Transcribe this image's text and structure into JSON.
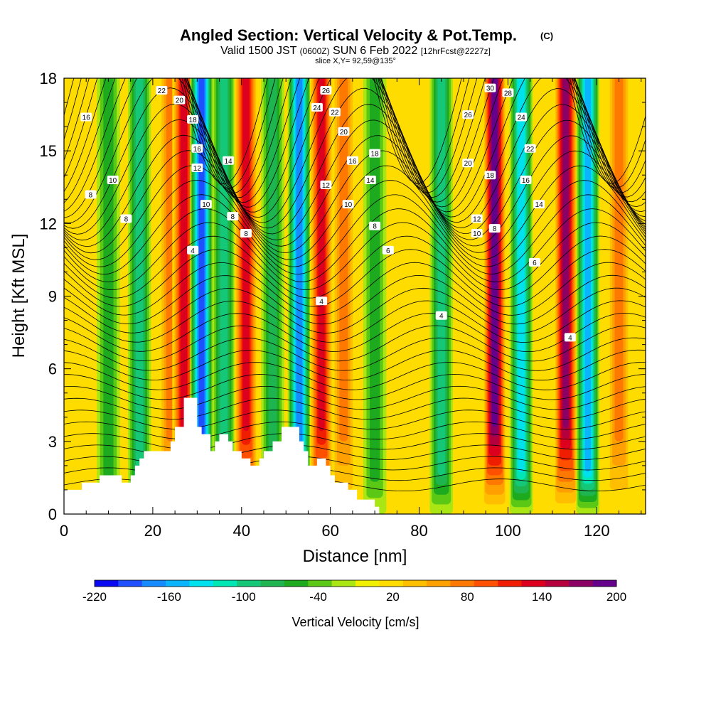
{
  "title": {
    "main": "Angled Section: Vertical Velocity & Pot.Temp.",
    "main_suffix": "(C)",
    "valid_prefix": "Valid 1500 JST",
    "valid_zulu": "(0600Z)",
    "valid_date": "SUN 6 Feb 2022",
    "forecast": "[12hrFcst@2227z]",
    "slice": "slice X,Y= 92,59@135°"
  },
  "chart_data": {
    "type": "heatmap",
    "xlabel": "Distance [nm]",
    "ylabel": "Height [Kft MSL]",
    "xlim": [
      0,
      131
    ],
    "ylim": [
      0,
      18
    ],
    "x_ticks": [
      0,
      20,
      40,
      60,
      80,
      100,
      120
    ],
    "y_ticks": [
      0,
      3,
      6,
      9,
      12,
      15,
      18
    ],
    "colorbar": {
      "label": "Vertical Velocity [cm/s]",
      "min": -220,
      "max": 200,
      "step": 20,
      "tick_values": [
        -220,
        -160,
        -100,
        -40,
        20,
        80,
        140,
        200
      ],
      "colors": [
        "#0a0af0",
        "#1e50ff",
        "#148cff",
        "#0ab4ff",
        "#00e1f0",
        "#00e6b4",
        "#14c878",
        "#1eb450",
        "#1eaa1e",
        "#5ac814",
        "#aae614",
        "#f0f000",
        "#ffdc00",
        "#ffbe00",
        "#ffa000",
        "#ff7800",
        "#ff5000",
        "#f01e00",
        "#dc001e",
        "#b4003c",
        "#8c0064",
        "#64008c"
      ]
    },
    "terrain_profile": [
      [
        0,
        1
      ],
      [
        4,
        1
      ],
      [
        4,
        1.3
      ],
      [
        8,
        1.3
      ],
      [
        8,
        1.6
      ],
      [
        13,
        1.6
      ],
      [
        13,
        1.3
      ],
      [
        15,
        1.3
      ],
      [
        15,
        1.6
      ],
      [
        16,
        1.6
      ],
      [
        16,
        2
      ],
      [
        17,
        2
      ],
      [
        17,
        2.3
      ],
      [
        18,
        2.3
      ],
      [
        18,
        2.6
      ],
      [
        19,
        2.6
      ],
      [
        19,
        2.6
      ],
      [
        24,
        2.6
      ],
      [
        24,
        3
      ],
      [
        25,
        3
      ],
      [
        25,
        3.6
      ],
      [
        27,
        3.6
      ],
      [
        27,
        4.8
      ],
      [
        30,
        4.8
      ],
      [
        30,
        3.6
      ],
      [
        31,
        3.6
      ],
      [
        31,
        3.3
      ],
      [
        33,
        3.3
      ],
      [
        33,
        2.6
      ],
      [
        34,
        2.6
      ],
      [
        34,
        3
      ],
      [
        35,
        3
      ],
      [
        35,
        3.3
      ],
      [
        37,
        3.3
      ],
      [
        37,
        3
      ],
      [
        38,
        3
      ],
      [
        38,
        2.6
      ],
      [
        40,
        2.6
      ],
      [
        40,
        2.3
      ],
      [
        42,
        2.3
      ],
      [
        42,
        2
      ],
      [
        44,
        2
      ],
      [
        44,
        2.3
      ],
      [
        45,
        2.3
      ],
      [
        45,
        2.6
      ],
      [
        47,
        2.6
      ],
      [
        47,
        3
      ],
      [
        49,
        3
      ],
      [
        49,
        3.6
      ],
      [
        53,
        3.6
      ],
      [
        53,
        3
      ],
      [
        54,
        3
      ],
      [
        54,
        2.6
      ],
      [
        55,
        2.6
      ],
      [
        55,
        2
      ],
      [
        57,
        2
      ],
      [
        57,
        2.3
      ],
      [
        59,
        2.3
      ],
      [
        59,
        2
      ],
      [
        60,
        2
      ],
      [
        60,
        1.6
      ],
      [
        61,
        1.6
      ],
      [
        61,
        1.3
      ],
      [
        64,
        1.3
      ],
      [
        64,
        1
      ],
      [
        66,
        1
      ],
      [
        66,
        0.6
      ],
      [
        70,
        0.6
      ],
      [
        70,
        0.3
      ],
      [
        71,
        0.3
      ],
      [
        71,
        0
      ],
      [
        0,
        0
      ]
    ],
    "series": [
      {
        "name": "Vertical Velocity [cm/s]",
        "field": [
          {
            "x": 10,
            "kind": "down",
            "value": -60
          },
          {
            "x": 17,
            "kind": "down",
            "value": -100
          },
          {
            "x": 24,
            "kind": "up",
            "value": 80
          },
          {
            "x": 27,
            "kind": "up",
            "value": 140
          },
          {
            "x": 31,
            "kind": "down",
            "value": -200
          },
          {
            "x": 36,
            "kind": "down",
            "value": -100
          },
          {
            "x": 41,
            "kind": "up",
            "value": 140
          },
          {
            "x": 47,
            "kind": "down",
            "value": -80
          },
          {
            "x": 53,
            "kind": "down",
            "value": -180
          },
          {
            "x": 58,
            "kind": "up",
            "value": 140
          },
          {
            "x": 63,
            "kind": "up",
            "value": 80
          },
          {
            "x": 70,
            "kind": "down",
            "value": -60
          },
          {
            "x": 85,
            "kind": "down",
            "value": -100
          },
          {
            "x": 97,
            "kind": "up",
            "value": 200
          },
          {
            "x": 103,
            "kind": "down",
            "value": -140
          },
          {
            "x": 113,
            "kind": "up",
            "value": 180
          },
          {
            "x": 118,
            "kind": "down",
            "value": -160
          },
          {
            "x": 125,
            "kind": "up",
            "value": 80
          }
        ]
      },
      {
        "name": "Pot.Temp. (C)",
        "contour_labels": [
          {
            "x": 22,
            "y": 17.5,
            "text": "22"
          },
          {
            "x": 26,
            "y": 17.1,
            "text": "20"
          },
          {
            "x": 5,
            "y": 16.4,
            "text": "16"
          },
          {
            "x": 29,
            "y": 16.3,
            "text": "18"
          },
          {
            "x": 30,
            "y": 15.1,
            "text": "16"
          },
          {
            "x": 37,
            "y": 14.6,
            "text": "14"
          },
          {
            "x": 30,
            "y": 14.3,
            "text": "12"
          },
          {
            "x": 11,
            "y": 13.8,
            "text": "10"
          },
          {
            "x": 6,
            "y": 13.2,
            "text": "8"
          },
          {
            "x": 32,
            "y": 12.8,
            "text": "10"
          },
          {
            "x": 38,
            "y": 12.3,
            "text": "8"
          },
          {
            "x": 14,
            "y": 12.2,
            "text": "8"
          },
          {
            "x": 41,
            "y": 11.6,
            "text": "8"
          },
          {
            "x": 29,
            "y": 10.9,
            "text": "4"
          },
          {
            "x": 59,
            "y": 17.5,
            "text": "26"
          },
          {
            "x": 57,
            "y": 16.8,
            "text": "24"
          },
          {
            "x": 61,
            "y": 16.6,
            "text": "22"
          },
          {
            "x": 63,
            "y": 15.8,
            "text": "20"
          },
          {
            "x": 70,
            "y": 14.9,
            "text": "18"
          },
          {
            "x": 65,
            "y": 14.6,
            "text": "16"
          },
          {
            "x": 69,
            "y": 13.8,
            "text": "14"
          },
          {
            "x": 59,
            "y": 13.6,
            "text": "12"
          },
          {
            "x": 64,
            "y": 12.8,
            "text": "10"
          },
          {
            "x": 70,
            "y": 11.9,
            "text": "8"
          },
          {
            "x": 73,
            "y": 10.9,
            "text": "6"
          },
          {
            "x": 58,
            "y": 8.8,
            "text": "4"
          },
          {
            "x": 96,
            "y": 17.6,
            "text": "30"
          },
          {
            "x": 100,
            "y": 17.4,
            "text": "28"
          },
          {
            "x": 91,
            "y": 16.5,
            "text": "26"
          },
          {
            "x": 103,
            "y": 16.4,
            "text": "24"
          },
          {
            "x": 105,
            "y": 15.1,
            "text": "22"
          },
          {
            "x": 91,
            "y": 14.5,
            "text": "20"
          },
          {
            "x": 96,
            "y": 14.0,
            "text": "18"
          },
          {
            "x": 104,
            "y": 13.8,
            "text": "16"
          },
          {
            "x": 107,
            "y": 12.8,
            "text": "14"
          },
          {
            "x": 93,
            "y": 12.2,
            "text": "12"
          },
          {
            "x": 93,
            "y": 11.6,
            "text": "10"
          },
          {
            "x": 97,
            "y": 11.8,
            "text": "8"
          },
          {
            "x": 106,
            "y": 10.4,
            "text": "6"
          },
          {
            "x": 85,
            "y": 8.2,
            "text": "4"
          },
          {
            "x": 114,
            "y": 7.3,
            "text": "4"
          }
        ]
      }
    ],
    "grid": false,
    "legend": "bottom-colorbar"
  }
}
